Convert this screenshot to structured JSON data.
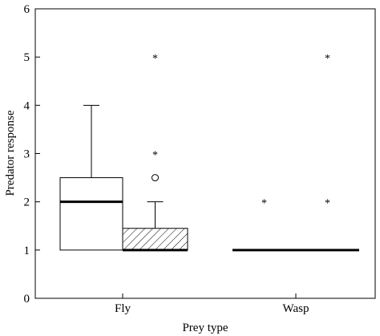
{
  "chart_data": {
    "type": "box",
    "title": "",
    "xlabel": "Prey type",
    "ylabel": "Predator response",
    "ylim": [
      0,
      6
    ],
    "yticks": [
      0,
      1,
      2,
      3,
      4,
      5,
      6
    ],
    "categories": [
      "Fly",
      "Wasp"
    ],
    "grid": false,
    "legend": "none",
    "boxes": [
      {
        "category": "Fly",
        "pattern": "plain",
        "q1": 1,
        "median": 2,
        "q3": 2.5,
        "whisker_low": 1,
        "whisker_high": 4,
        "outliers": [],
        "extremes": []
      },
      {
        "category": "Fly",
        "pattern": "hatched",
        "q1": 1,
        "median": 1,
        "q3": 1.45,
        "whisker_low": 1,
        "whisker_high": 2,
        "outliers": [
          2.5
        ],
        "extremes": [
          3,
          5
        ]
      },
      {
        "category": "Wasp",
        "pattern": "plain",
        "q1": 1,
        "median": 1,
        "q3": 1,
        "whisker_low": 1,
        "whisker_high": 1,
        "outliers": [],
        "extremes": [
          2
        ]
      },
      {
        "category": "Wasp",
        "pattern": "hatched",
        "q1": 1,
        "median": 1,
        "q3": 1,
        "whisker_low": 1,
        "whisker_high": 1,
        "outliers": [],
        "extremes": [
          2,
          5
        ]
      }
    ]
  }
}
